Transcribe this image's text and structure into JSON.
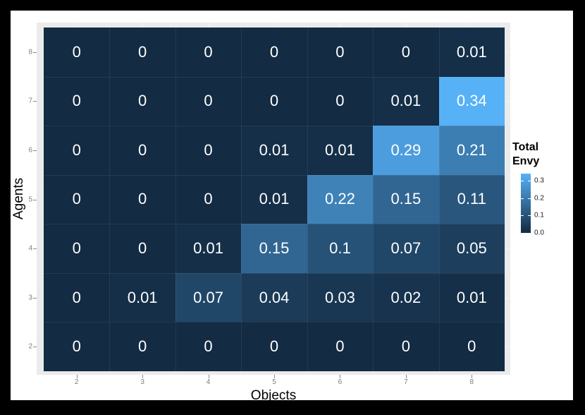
{
  "appearance": {
    "page_background": "#000000",
    "plot_background": "#FFFFFF",
    "panel_background": "#EBEBEB",
    "cell_text_color": "#FFFFFF",
    "axis_text_color": "#7E7E7E",
    "axis_title_color": "#000000"
  },
  "chart_data": {
    "type": "heatmap",
    "title": "",
    "xlabel": "Objects",
    "ylabel": "Agents",
    "x_categories": [
      "2",
      "3",
      "4",
      "5",
      "6",
      "7",
      "8"
    ],
    "y_categories_top_to_bottom": [
      "8",
      "7",
      "6",
      "5",
      "4",
      "3",
      "2"
    ],
    "cell_values": [
      [
        0,
        0,
        0,
        0,
        0,
        0,
        0.01
      ],
      [
        0,
        0,
        0,
        0,
        0,
        0.01,
        0.34
      ],
      [
        0,
        0,
        0,
        0.01,
        0.01,
        0.29,
        0.21
      ],
      [
        0,
        0,
        0,
        0.01,
        0.22,
        0.15,
        0.11
      ],
      [
        0,
        0,
        0.01,
        0.15,
        0.1,
        0.07,
        0.05
      ],
      [
        0,
        0.01,
        0.07,
        0.04,
        0.03,
        0.02,
        0.01
      ],
      [
        0,
        0,
        0,
        0,
        0,
        0,
        0
      ]
    ],
    "cell_labels": [
      [
        "0",
        "0",
        "0",
        "0",
        "0",
        "0",
        "0.01"
      ],
      [
        "0",
        "0",
        "0",
        "0",
        "0",
        "0.01",
        "0.34"
      ],
      [
        "0",
        "0",
        "0",
        "0.01",
        "0.01",
        "0.29",
        "0.21"
      ],
      [
        "0",
        "0",
        "0",
        "0.01",
        "0.22",
        "0.15",
        "0.11"
      ],
      [
        "0",
        "0",
        "0.01",
        "0.15",
        "0.1",
        "0.07",
        "0.05"
      ],
      [
        "0",
        "0.01",
        "0.07",
        "0.04",
        "0.03",
        "0.02",
        "0.01"
      ],
      [
        "0",
        "0",
        "0",
        "0",
        "0",
        "0",
        "0"
      ]
    ],
    "color_scale": {
      "min": 0,
      "max": 0.34,
      "low_color": "#132B43",
      "high_color": "#56B1F7"
    },
    "legend": {
      "title_line1": "Total",
      "title_line2": "Envy",
      "ticks": [
        {
          "label": "0.3",
          "value": 0.3
        },
        {
          "label": "0.2",
          "value": 0.2
        },
        {
          "label": "0.1",
          "value": 0.1
        },
        {
          "label": "0.0",
          "value": 0.0
        }
      ],
      "position": "right"
    },
    "grid_on": false
  }
}
